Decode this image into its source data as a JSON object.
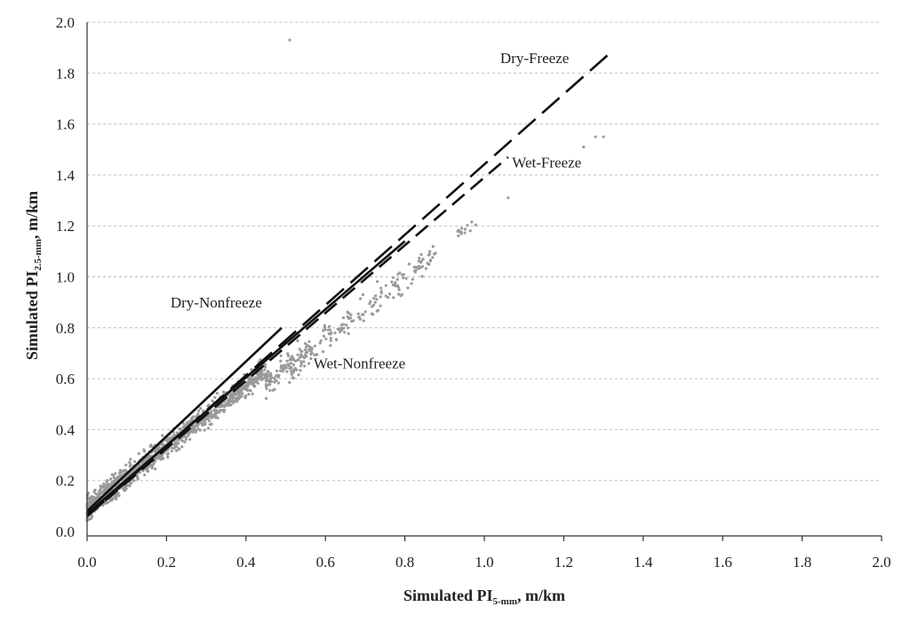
{
  "chart_data": {
    "type": "scatter",
    "xlabel_main": "Simulated PI",
    "xlabel_sub": "5-mm",
    "xlabel_unit": ", m/km",
    "ylabel_main": "Simulated PI",
    "ylabel_sub": "2.5-mm",
    "ylabel_unit": ", m/km",
    "xlim": [
      0,
      2.0
    ],
    "ylim": [
      0,
      2.0
    ],
    "x_ticks": [
      "0.0",
      "0.2",
      "0.4",
      "0.6",
      "0.8",
      "1.0",
      "1.2",
      "1.4",
      "1.6",
      "1.8",
      "2.0"
    ],
    "y_ticks": [
      "0.0",
      "0.2",
      "0.4",
      "0.6",
      "0.8",
      "1.0",
      "1.2",
      "1.4",
      "1.6",
      "1.8",
      "2.0"
    ],
    "grid": "horizontal dotted",
    "point_color": "#9a9a9a",
    "line_color": "#111111",
    "scatter_clusters": [
      {
        "x_range": [
          0.0,
          0.45
        ],
        "slope": 1.22,
        "intercept": 0.09,
        "spread": 0.045,
        "count": 1100
      },
      {
        "x_range": [
          0.45,
          0.88
        ],
        "slope": 1.18,
        "intercept": 0.05,
        "spread": 0.05,
        "count": 260
      },
      {
        "x_range": [
          0.93,
          0.98
        ],
        "slope": 1.0,
        "intercept": 0.24,
        "spread": 0.02,
        "count": 14
      }
    ],
    "outliers": [
      {
        "x": 0.51,
        "y": 1.93
      },
      {
        "x": 1.06,
        "y": 1.31
      },
      {
        "x": 1.25,
        "y": 1.51
      },
      {
        "x": 1.28,
        "y": 1.55
      },
      {
        "x": 1.3,
        "y": 1.55
      }
    ],
    "series": [
      {
        "name": "Dry-Freeze",
        "style": "long-dash",
        "x": [
          0.0,
          1.31
        ],
        "y": [
          0.06,
          1.87
        ]
      },
      {
        "name": "Wet-Freeze",
        "style": "dash",
        "x": [
          0.0,
          1.06
        ],
        "y": [
          0.06,
          1.47
        ]
      },
      {
        "name": "Dry-Nonfreeze",
        "style": "solid",
        "x": [
          0.0,
          0.49
        ],
        "y": [
          0.08,
          0.8
        ]
      },
      {
        "name": "Wet-Nonfreeze",
        "style": "solid",
        "x": [
          0.0,
          0.8
        ],
        "y": [
          0.07,
          1.14
        ]
      }
    ],
    "annotations": [
      {
        "text": "Dry-Freeze",
        "x": 1.04,
        "y": 1.84
      },
      {
        "text": "Wet-Freeze",
        "x": 1.07,
        "y": 1.43
      },
      {
        "text": "Dry-Nonfreeze",
        "x": 0.21,
        "y": 0.88
      },
      {
        "text": "Wet-Nonfreeze",
        "x": 0.57,
        "y": 0.64
      }
    ]
  }
}
